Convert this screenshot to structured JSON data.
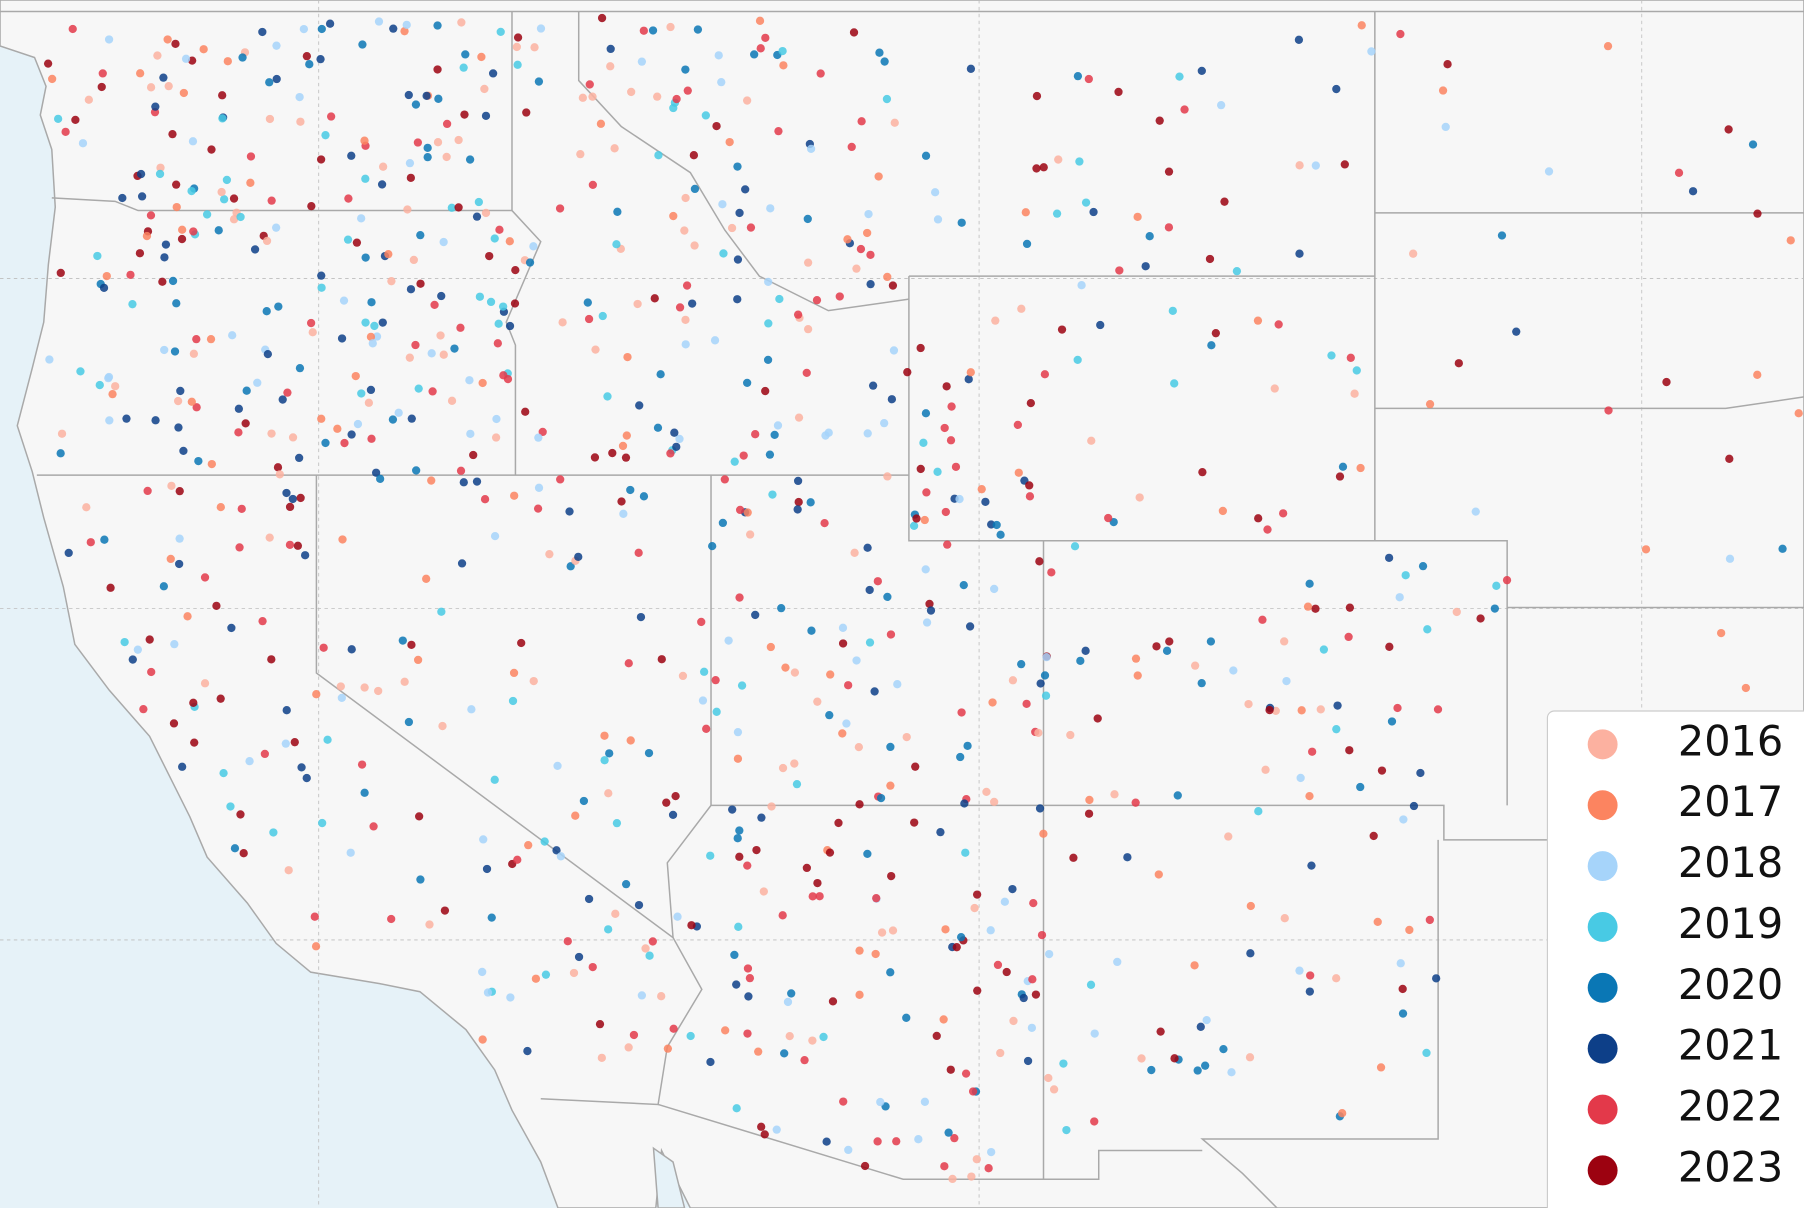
{
  "legend": {
    "entries": [
      {
        "label": "2016",
        "color": "#fcb1a0"
      },
      {
        "label": "2017",
        "color": "#fc8460"
      },
      {
        "label": "2018",
        "color": "#a6d4fa"
      },
      {
        "label": "2019",
        "color": "#48cae4"
      },
      {
        "label": "2020",
        "color": "#0a77b5"
      },
      {
        "label": "2021",
        "color": "#0d3f88"
      },
      {
        "label": "2022",
        "color": "#e3394a"
      },
      {
        "label": "2023",
        "color": "#9c0210"
      }
    ]
  }
}
